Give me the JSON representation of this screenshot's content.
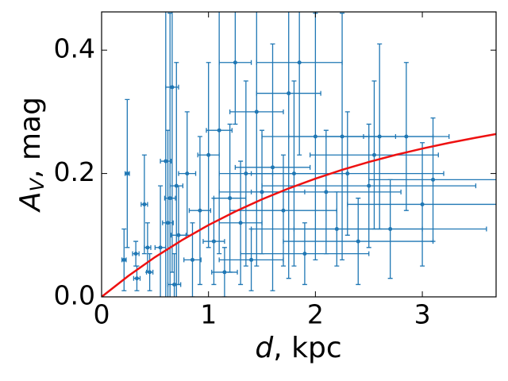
{
  "chart_data": {
    "type": "errorbar-scatter",
    "xlabel_symbol": "d",
    "xlabel_rest": ", kpc",
    "ylabel_symbol": "A",
    "ylabel_subscript": "V",
    "ylabel_rest": ", mag",
    "xlim": [
      0,
      3.69
    ],
    "ylim": [
      0,
      0.462
    ],
    "xticks": [
      0,
      1,
      2,
      3
    ],
    "yticks": [
      {
        "value": 0,
        "label": "0.0"
      },
      0.2,
      0.4
    ],
    "points": {
      "color": "#1f77b4",
      "x": [
        0.21,
        0.24,
        0.32,
        0.33,
        0.4,
        0.43,
        0.45,
        0.55,
        0.6,
        0.62,
        0.64,
        0.66,
        0.68,
        0.7,
        0.72,
        0.8,
        0.85,
        0.92,
        1.0,
        1.05,
        1.1,
        1.15,
        1.2,
        1.25,
        1.3,
        1.35,
        1.4,
        1.45,
        1.5,
        1.6,
        1.7,
        1.75,
        1.8,
        1.85,
        1.9,
        2.0,
        2.1,
        2.2,
        2.25,
        2.3,
        2.4,
        2.5,
        2.55,
        2.6,
        2.7,
        2.85,
        3.0,
        3.1
      ],
      "values": [
        0.06,
        0.2,
        0.07,
        0.03,
        0.15,
        0.08,
        0.04,
        0.08,
        0.22,
        0.12,
        0.16,
        0.34,
        0.02,
        0.18,
        0.1,
        0.2,
        0.06,
        0.14,
        0.23,
        0.09,
        0.27,
        0.04,
        0.16,
        0.38,
        0.12,
        0.2,
        0.06,
        0.3,
        0.17,
        0.21,
        0.14,
        0.33,
        0.2,
        0.38,
        0.07,
        0.26,
        0.17,
        0.11,
        0.26,
        0.2,
        0.09,
        0.18,
        0.23,
        0.26,
        0.11,
        0.26,
        0.15,
        0.19
      ],
      "xerr": [
        0.02,
        0.02,
        0.03,
        0.03,
        0.03,
        0.03,
        0.03,
        0.05,
        0.05,
        0.05,
        0.05,
        0.06,
        0.06,
        0.06,
        0.07,
        0.08,
        0.08,
        0.1,
        0.1,
        0.1,
        0.12,
        0.12,
        0.15,
        0.15,
        0.2,
        0.25,
        0.3,
        0.25,
        0.4,
        0.35,
        0.5,
        0.3,
        0.45,
        0.4,
        0.6,
        0.5,
        0.7,
        0.8,
        0.5,
        0.9,
        0.7,
        1.0,
        0.6,
        0.5,
        0.9,
        0.4,
        0.7,
        0.6
      ],
      "yerr": [
        0.05,
        0.12,
        0.02,
        0.02,
        0.08,
        0.04,
        0.03,
        0.1,
        0.25,
        0.15,
        0.3,
        0.3,
        0.05,
        0.2,
        0.08,
        0.1,
        0.06,
        0.12,
        0.15,
        0.07,
        0.2,
        0.04,
        0.12,
        0.1,
        0.1,
        0.15,
        0.05,
        0.25,
        0.1,
        0.2,
        0.09,
        0.3,
        0.15,
        0.15,
        0.05,
        0.2,
        0.1,
        0.06,
        0.2,
        0.1,
        0.07,
        0.1,
        0.12,
        0.15,
        0.08,
        0.12,
        0.1,
        0.1
      ]
    },
    "curve": {
      "color": "#ee1111",
      "x": [
        0,
        0.25,
        0.5,
        0.75,
        1.0,
        1.25,
        1.5,
        1.75,
        2.0,
        2.25,
        2.5,
        2.75,
        3.0,
        3.25,
        3.5,
        3.69
      ],
      "values": [
        0,
        0.034,
        0.0645,
        0.0918,
        0.1164,
        0.1384,
        0.1581,
        0.1758,
        0.1917,
        0.206,
        0.2187,
        0.2302,
        0.2404,
        0.2497,
        0.258,
        0.264
      ]
    }
  }
}
